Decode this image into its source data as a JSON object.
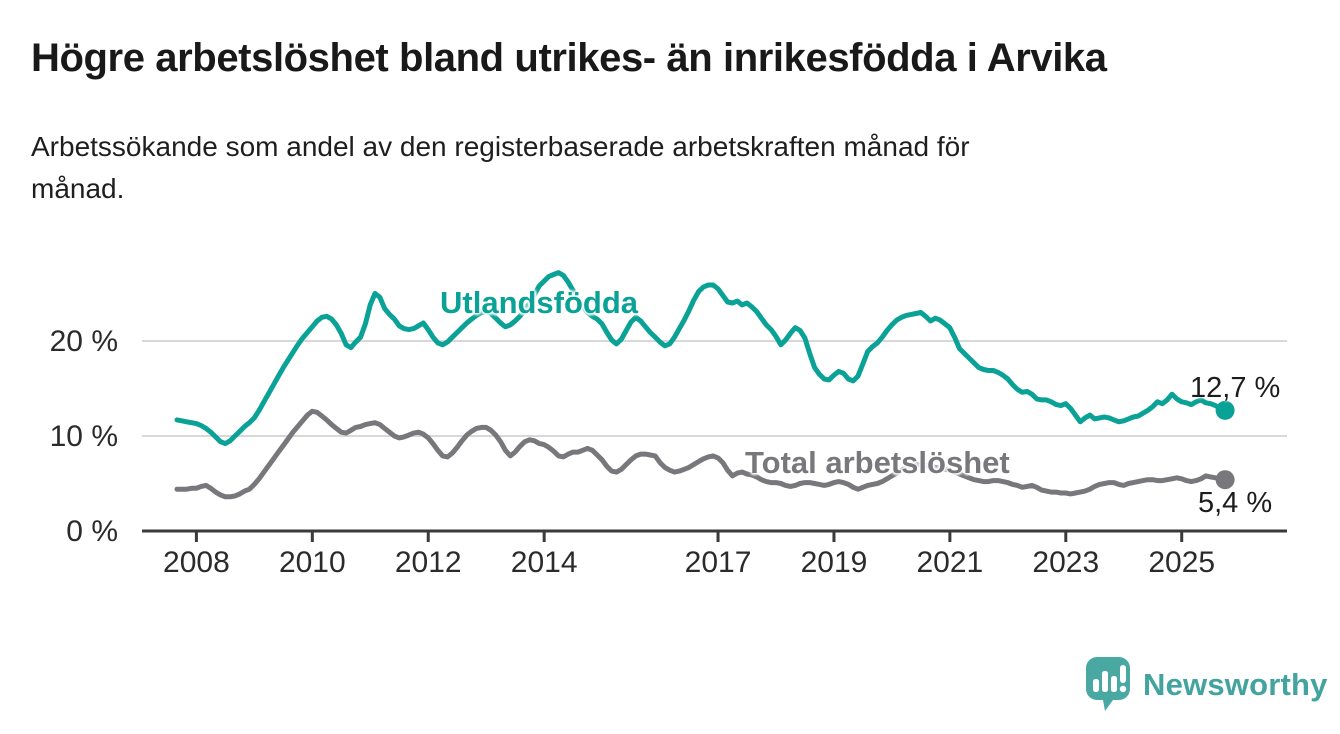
{
  "header": {
    "title": "Högre arbetslöshet bland utrikes- än inrikesfödda i Arvika",
    "subtitle_line1": "Arbetssökande som andel av den registerbaserade arbetskraften månad för",
    "subtitle_line2": "månad."
  },
  "chart_data": {
    "type": "line",
    "unit": "%",
    "x_start": "2007-09",
    "x_end": "2025-10",
    "points_per_year": 12,
    "x_ticks": [
      2008,
      2010,
      2012,
      2014,
      2017,
      2019,
      2021,
      2023,
      2025
    ],
    "y_ticks": [
      {
        "value": 0,
        "label": "0 %"
      },
      {
        "value": 10,
        "label": "10 %"
      },
      {
        "value": 20,
        "label": "20 %"
      }
    ],
    "ylim": [
      0,
      28
    ],
    "grid": "horizontal-only",
    "legend_position": "inline-labels",
    "series": [
      {
        "name": "Utlandsfödda",
        "color": "#0aa296",
        "end_label": "12,7 %",
        "end_value": 12.7,
        "values": [
          11.7,
          11.6,
          11.5,
          11.4,
          11.3,
          11.1,
          10.8,
          10.4,
          9.9,
          9.4,
          9.2,
          9.5,
          10.0,
          10.5,
          11.0,
          11.4,
          11.9,
          12.7,
          13.6,
          14.5,
          15.4,
          16.3,
          17.2,
          18.0,
          18.8,
          19.6,
          20.3,
          20.9,
          21.5,
          22.1,
          22.5,
          22.6,
          22.3,
          21.7,
          20.8,
          19.6,
          19.3,
          19.9,
          20.4,
          21.8,
          23.8,
          25.0,
          24.6,
          23.4,
          22.8,
          22.3,
          21.6,
          21.3,
          21.2,
          21.3,
          21.6,
          21.9,
          21.2,
          20.4,
          19.8,
          19.6,
          19.9,
          20.4,
          20.9,
          21.4,
          21.9,
          22.3,
          22.7,
          23.0,
          23.1,
          22.9,
          22.4,
          21.9,
          21.5,
          21.7,
          22.1,
          22.6,
          23.2,
          24.0,
          24.9,
          25.8,
          26.3,
          26.8,
          27.0,
          27.2,
          26.9,
          26.2,
          25.3,
          24.4,
          23.6,
          23.0,
          22.6,
          22.3,
          21.8,
          20.9,
          20.1,
          19.7,
          20.2,
          21.1,
          22.0,
          22.5,
          22.1,
          21.5,
          20.9,
          20.4,
          19.9,
          19.5,
          19.7,
          20.4,
          21.3,
          22.2,
          23.2,
          24.3,
          25.2,
          25.7,
          25.9,
          25.9,
          25.5,
          24.8,
          24.1,
          24.0,
          24.2,
          23.8,
          24.0,
          23.6,
          23.1,
          22.4,
          21.7,
          21.2,
          20.5,
          19.6,
          20.1,
          20.8,
          21.4,
          21.1,
          20.3,
          18.7,
          17.2,
          16.5,
          16.0,
          15.9,
          16.4,
          16.8,
          16.6,
          16.0,
          15.8,
          16.3,
          17.6,
          18.9,
          19.4,
          19.8,
          20.4,
          21.1,
          21.7,
          22.2,
          22.5,
          22.7,
          22.8,
          22.9,
          23.0,
          22.6,
          22.1,
          22.4,
          22.2,
          21.8,
          21.4,
          20.4,
          19.2,
          18.7,
          18.2,
          17.7,
          17.2,
          17.0,
          16.9,
          16.9,
          16.7,
          16.4,
          16.0,
          15.4,
          14.9,
          14.6,
          14.7,
          14.4,
          13.9,
          13.8,
          13.8,
          13.6,
          13.3,
          13.2,
          13.4,
          12.9,
          12.2,
          11.5,
          11.9,
          12.2,
          11.8,
          11.9,
          12.0,
          11.9,
          11.7,
          11.5,
          11.6,
          11.8,
          12.0,
          12.1,
          12.4,
          12.7,
          13.1,
          13.6,
          13.4,
          13.8,
          14.4,
          13.9,
          13.6,
          13.5,
          13.3,
          13.6,
          13.8,
          13.5,
          13.4,
          13.2,
          12.9,
          12.7
        ]
      },
      {
        "name": "Total arbetslöshet",
        "color": "#77777c",
        "end_label": "5,4 %",
        "end_value": 5.4,
        "values": [
          4.4,
          4.4,
          4.4,
          4.5,
          4.5,
          4.7,
          4.8,
          4.5,
          4.1,
          3.8,
          3.6,
          3.6,
          3.7,
          3.9,
          4.2,
          4.4,
          4.9,
          5.5,
          6.2,
          6.9,
          7.6,
          8.3,
          9.0,
          9.7,
          10.4,
          11.0,
          11.6,
          12.2,
          12.6,
          12.5,
          12.1,
          11.7,
          11.2,
          10.8,
          10.4,
          10.3,
          10.6,
          10.9,
          11.0,
          11.2,
          11.3,
          11.4,
          11.2,
          10.8,
          10.4,
          10.0,
          9.8,
          9.9,
          10.1,
          10.3,
          10.4,
          10.2,
          9.8,
          9.2,
          8.5,
          7.9,
          7.8,
          8.2,
          8.8,
          9.5,
          10.1,
          10.5,
          10.8,
          10.9,
          10.9,
          10.6,
          10.1,
          9.4,
          8.5,
          7.9,
          8.3,
          8.9,
          9.4,
          9.6,
          9.5,
          9.2,
          9.1,
          8.8,
          8.4,
          7.9,
          7.8,
          8.1,
          8.3,
          8.3,
          8.5,
          8.7,
          8.5,
          8.0,
          7.5,
          6.8,
          6.3,
          6.2,
          6.5,
          7.0,
          7.5,
          7.9,
          8.1,
          8.1,
          8.0,
          7.9,
          7.2,
          6.7,
          6.4,
          6.2,
          6.3,
          6.5,
          6.7,
          7.0,
          7.3,
          7.6,
          7.8,
          7.9,
          7.7,
          7.2,
          6.4,
          5.8,
          6.1,
          6.2,
          6.0,
          5.9,
          5.7,
          5.4,
          5.2,
          5.1,
          5.1,
          5.0,
          4.8,
          4.7,
          4.8,
          5.0,
          5.1,
          5.1,
          5.0,
          4.9,
          4.8,
          4.9,
          5.1,
          5.2,
          5.1,
          4.9,
          4.6,
          4.4,
          4.6,
          4.8,
          4.9,
          5.0,
          5.2,
          5.5,
          5.8,
          6.1,
          6.4,
          6.7,
          6.9,
          7.0,
          7.0,
          6.9,
          6.8,
          6.7,
          6.6,
          6.5,
          6.4,
          6.2,
          6.0,
          5.8,
          5.6,
          5.4,
          5.3,
          5.2,
          5.2,
          5.3,
          5.3,
          5.2,
          5.1,
          4.9,
          4.8,
          4.6,
          4.7,
          4.8,
          4.6,
          4.3,
          4.2,
          4.1,
          4.1,
          4.0,
          4.0,
          3.9,
          4.0,
          4.1,
          4.2,
          4.4,
          4.7,
          4.9,
          5.0,
          5.1,
          5.1,
          4.9,
          4.8,
          5.0,
          5.1,
          5.2,
          5.3,
          5.4,
          5.4,
          5.3,
          5.3,
          5.4,
          5.5,
          5.6,
          5.5,
          5.3,
          5.2,
          5.3,
          5.5,
          5.8,
          5.7,
          5.6,
          5.5,
          5.4
        ]
      }
    ],
    "colors": {
      "axis": "#3a3a3a",
      "gridline": "#d8d8d8",
      "tick_label": "#2b2b2b"
    }
  },
  "branding": {
    "logo_text": "Newsworthy",
    "logo_text_color": "#43a39e",
    "logo_icon_color": "#4aa8a2"
  }
}
